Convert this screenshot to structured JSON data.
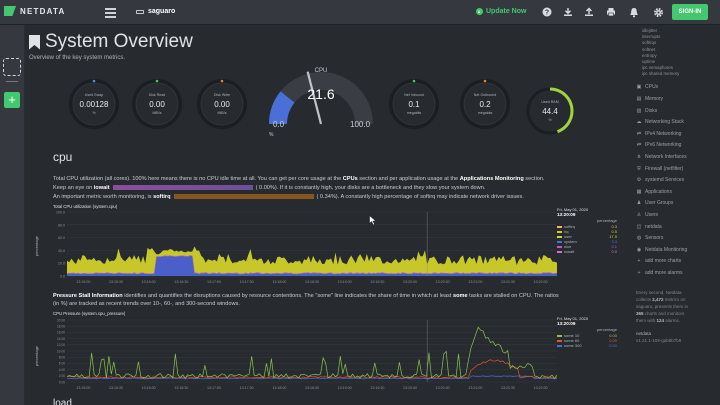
{
  "topbar": {
    "brand": "NETDATA",
    "server_name": "saguaro",
    "update_label": "Update Now",
    "signin_label": "SIGN-IN",
    "icons": [
      "help-icon",
      "download-icon",
      "upload-icon",
      "print-icon",
      "bell-icon",
      "gear-icon"
    ]
  },
  "page": {
    "title": "System Overview",
    "subtitle": "Overview of the key system metrics."
  },
  "gauges": [
    {
      "label": "Used Swap",
      "value": "0.00128",
      "unit": "%",
      "color": "#4a90e2"
    },
    {
      "label": "Disk Read",
      "value": "0.00",
      "unit": "MiB/s",
      "color": "#43c86f"
    },
    {
      "label": "Disk Write",
      "value": "0.00",
      "unit": "MiB/s",
      "color": "#f0802a"
    },
    {
      "label": "Net Inbound",
      "value": "0.1",
      "unit": "megabits",
      "color": "#43c86f"
    },
    {
      "label": "Net Outbound",
      "value": "0.2",
      "unit": "megabits",
      "color": "#f0802a"
    },
    {
      "label": "Used RAM",
      "value": "44.4",
      "unit": "%",
      "color": "#a0d33c",
      "fraction": 0.444
    }
  ],
  "cpu_gauge": {
    "label": "CPU",
    "value": "21.6",
    "min": "0.0",
    "max": "100.0",
    "unit": "%",
    "fraction": 0.216,
    "color": "#4a6fd6"
  },
  "cpu_section": {
    "heading": "cpu",
    "line1_a": "Total CPU utilization (all cores). 100% here means there is no CPU idle time at all. You can get per core usage at the ",
    "line1_b": "CPUs",
    "line1_c": " section and per application usage at the ",
    "line1_d": "Applications Monitoring",
    "line1_e": " section.",
    "line2_a": "Keep an eye on ",
    "line2_b": "iowait",
    "line2_c": "(      0.00%). If it is constantly high, your disks are a bottleneck and they slow your system down.",
    "line3_a": "An important metric worth monitoring, is ",
    "line3_b": "softirq",
    "line3_c": "(      0.34%). A constantly high percentage of softirq may indicate network driver issues."
  },
  "cpu_chart": {
    "title": "Total CPU utilization (system.cpu)",
    "ylabel": "percentage",
    "date": "Fri, May 01, 2020",
    "time": "13:20:09",
    "unit": "percentage",
    "xticks": [
      "13:15:00",
      "13:15:30",
      "13:16:00",
      "13:16:30",
      "13:17:00",
      "13:17:30",
      "13:18:00",
      "13:18:30",
      "13:19:00",
      "13:19:30",
      "13:20:00",
      "13:20:30",
      "13:21:00",
      "13:21:30",
      "13:22:00"
    ],
    "yticks": [
      "100.0",
      "80.0",
      "60.0",
      "40.0",
      "20.0",
      "0.0"
    ],
    "legend": [
      {
        "name": "softirq",
        "value": "0.3",
        "color": "#f7b267"
      },
      {
        "name": "irq",
        "value": "0.5",
        "color": "#c7d12c"
      },
      {
        "name": "user",
        "value": "17.5",
        "color": "#d3d32c"
      },
      {
        "name": "system",
        "value": "3.3",
        "color": "#4a6fd6"
      },
      {
        "name": "nice",
        "value": "0.1",
        "color": "#b45ec7"
      },
      {
        "name": "iowait",
        "value": "0.0",
        "color": "#e86ac2"
      }
    ]
  },
  "pressure_section": {
    "line1_a": "Pressure Stall Information",
    "line1_b": " identifies and quantifies the disruptions caused by resource contentions. The \"some\" line indicates the share of time in which at least ",
    "line1_c": "some",
    "line1_d": " tasks are stalled on CPU. The ratios",
    "line2": "(in %) are tracked as recent trends over 10-, 60-, and 300-second windows."
  },
  "pressure_chart": {
    "title": "CPU Pressure (system.cpu_pressure)",
    "ylabel": "percentage",
    "date": "Fri, May 01, 2020",
    "time": "13:20:09",
    "unit": "percentage",
    "xticks": [
      "13:15:00",
      "13:15:30",
      "13:16:00",
      "13:16:30",
      "13:17:00",
      "13:17:30",
      "13:18:00",
      "13:18:30",
      "13:19:00",
      "13:19:30",
      "13:20:00",
      "13:20:30",
      "13:21:00",
      "13:21:30",
      "13:22:00"
    ],
    "yticks": [
      "20.00",
      "18.00",
      "16.00",
      "14.00",
      "12.00",
      "10.00",
      "8.00",
      "6.00",
      "4.00",
      "2.00",
      "0.00"
    ],
    "legend": [
      {
        "name": "some 10",
        "value": "0.00",
        "color": "#8bc34a"
      },
      {
        "name": "some 60",
        "value": "0.00",
        "color": "#e8532e"
      },
      {
        "name": "some 300",
        "value": "0.00",
        "color": "#4a6fd6"
      }
    ]
  },
  "sidebar": {
    "subitems": [
      "idlejitter",
      "interrupts",
      "softirqs",
      "softnet",
      "entropy",
      "uptime",
      "ipc semaphores",
      "ipc shared memory"
    ],
    "items": [
      {
        "label": "CPUs",
        "icon": "cpu-icon",
        "glyph": "▣"
      },
      {
        "label": "Memory",
        "icon": "memory-icon",
        "glyph": "▤"
      },
      {
        "label": "Disks",
        "icon": "disk-icon",
        "glyph": "▥"
      },
      {
        "label": "Networking Stack",
        "icon": "cloud-icon",
        "glyph": "☁"
      },
      {
        "label": "IPv4 Networking",
        "icon": "network-icon",
        "glyph": "⇄"
      },
      {
        "label": "IPv6 Networking",
        "icon": "network-icon",
        "glyph": "⇄"
      },
      {
        "label": "Network Interfaces",
        "icon": "network-interfaces-icon",
        "glyph": "⋔"
      },
      {
        "label": "Firewall (netfilter)",
        "icon": "shield-icon",
        "glyph": "⛨"
      },
      {
        "label": "systemd Services",
        "icon": "gears-icon",
        "glyph": "⚙"
      },
      {
        "label": "Applications",
        "icon": "applications-icon",
        "glyph": "▦"
      },
      {
        "label": "User Groups",
        "icon": "user-groups-icon",
        "glyph": "♟"
      },
      {
        "label": "Users",
        "icon": "users-icon",
        "glyph": "♙"
      },
      {
        "label": "netdata",
        "icon": "netdata-icon",
        "glyph": "◫"
      },
      {
        "label": "Sensors",
        "icon": "thermometer-icon",
        "glyph": "◍"
      },
      {
        "label": "Netdata Monitoring",
        "icon": "monitoring-icon",
        "glyph": "◉"
      },
      {
        "label": "add more charts",
        "icon": "plus-icon",
        "glyph": "+"
      },
      {
        "label": "add more alarms",
        "icon": "plus-icon",
        "glyph": "+"
      }
    ],
    "footer_l1": "Every second, Netdata",
    "footer_l2a": "collects ",
    "footer_l2b": "2,472",
    "footer_l2c": " metrics on",
    "footer_l3": "saguaro, presents them in",
    "footer_l4a": "",
    "footer_l4b": "365",
    "footer_l4c": " charts and monitors",
    "footer_l5a": "them with ",
    "footer_l5b": "124",
    "footer_l5c": " alarms.",
    "brand": "netdata",
    "version": "v1.21.1-109-gab8b7b9"
  }
}
